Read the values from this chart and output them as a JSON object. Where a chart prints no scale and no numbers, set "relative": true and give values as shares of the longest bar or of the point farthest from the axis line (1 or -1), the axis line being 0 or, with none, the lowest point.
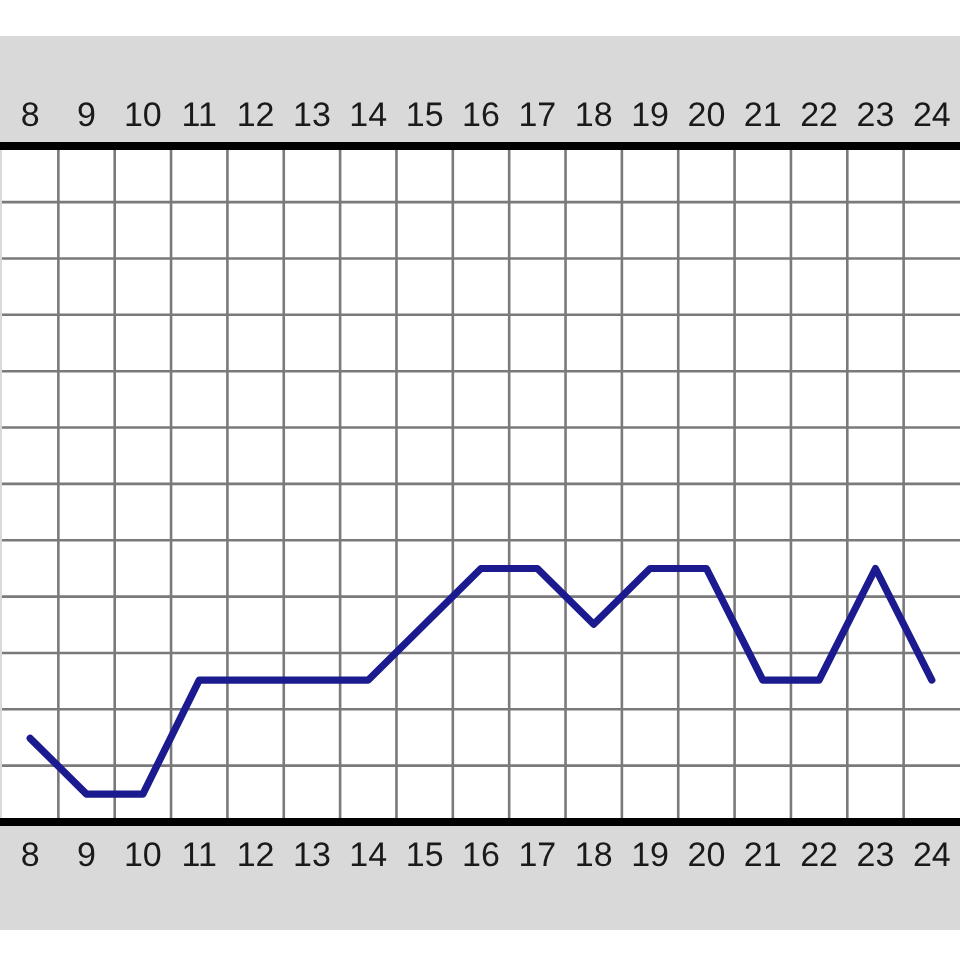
{
  "chart_data": {
    "type": "line",
    "relative": true,
    "grid": true,
    "categories": [
      "8",
      "9",
      "10",
      "11",
      "12",
      "13",
      "14",
      "15",
      "16",
      "17",
      "18",
      "19",
      "20",
      "21",
      "22",
      "23",
      "24"
    ],
    "values": [
      0.33,
      0.11,
      0.11,
      0.56,
      0.56,
      0.56,
      0.56,
      0.78,
      1,
      1,
      0.78,
      1,
      1,
      0.56,
      0.56,
      1,
      0.56
    ],
    "color": "#1b1b8f"
  }
}
